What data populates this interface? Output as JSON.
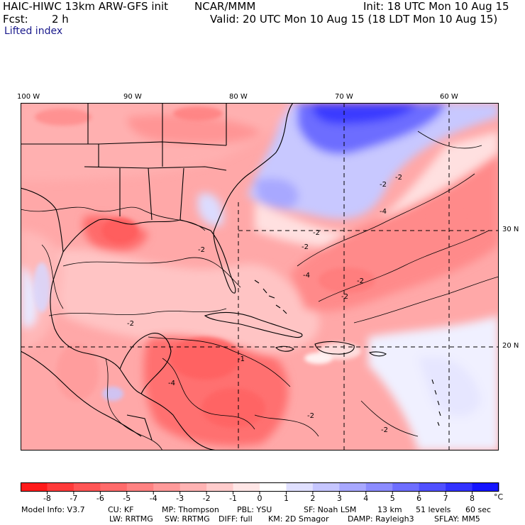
{
  "header": {
    "title_left": "HAIC-HIWC 13km ARW-GFS init",
    "org": "NCAR/MMM",
    "init": "Init: 18 UTC Mon 10 Aug 15",
    "fcst_label": "Fcst:",
    "fcst_value": "2 h",
    "valid": "Valid: 20 UTC Mon 10 Aug 15 (18 LDT Mon 10 Aug 15)",
    "field": "Lifted index"
  },
  "map": {
    "lon_labels": [
      "100 W",
      "90 W",
      "80 W",
      "70 W",
      "60 W"
    ],
    "lat_labels": [
      "30 N",
      "20 N"
    ],
    "contour_labels": [
      "-2",
      "-2",
      "-2",
      "-4",
      "-2",
      "-2",
      "-4",
      "-2",
      "-2",
      "-2",
      "-4",
      "-2",
      "-1",
      "-2"
    ]
  },
  "colorbar": {
    "ticks": [
      "-8",
      "-7",
      "-6",
      "-5",
      "-4",
      "-3",
      "-2",
      "-1",
      "0",
      "1",
      "2",
      "3",
      "4",
      "5",
      "6",
      "7",
      "8"
    ],
    "unit": "°C",
    "colors": [
      "#ff1a1a",
      "#ff3a3a",
      "#ff5555",
      "#ff6b6b",
      "#ff8282",
      "#ff9a9a",
      "#ffb3b3",
      "#ffcccc",
      "#ffe6e6",
      "#ffffff",
      "#e0e0ff",
      "#c6c6ff",
      "#a8a8ff",
      "#8c8cff",
      "#6e6eff",
      "#5050ff",
      "#3232ff",
      "#1414ff"
    ]
  },
  "footer": {
    "line1": [
      "Model Info: V3.7",
      "CU: KF",
      "MP: Thompson",
      "PBL: YSU",
      "SF: Noah LSM",
      "13 km",
      "51 levels",
      "60 sec"
    ],
    "line2": [
      "LW: RRTMG",
      "SW: RRTMG",
      "DIFF: full",
      "KM: 2D Smagor",
      "DAMP: Rayleigh3",
      "SFLAY: MM5"
    ]
  }
}
